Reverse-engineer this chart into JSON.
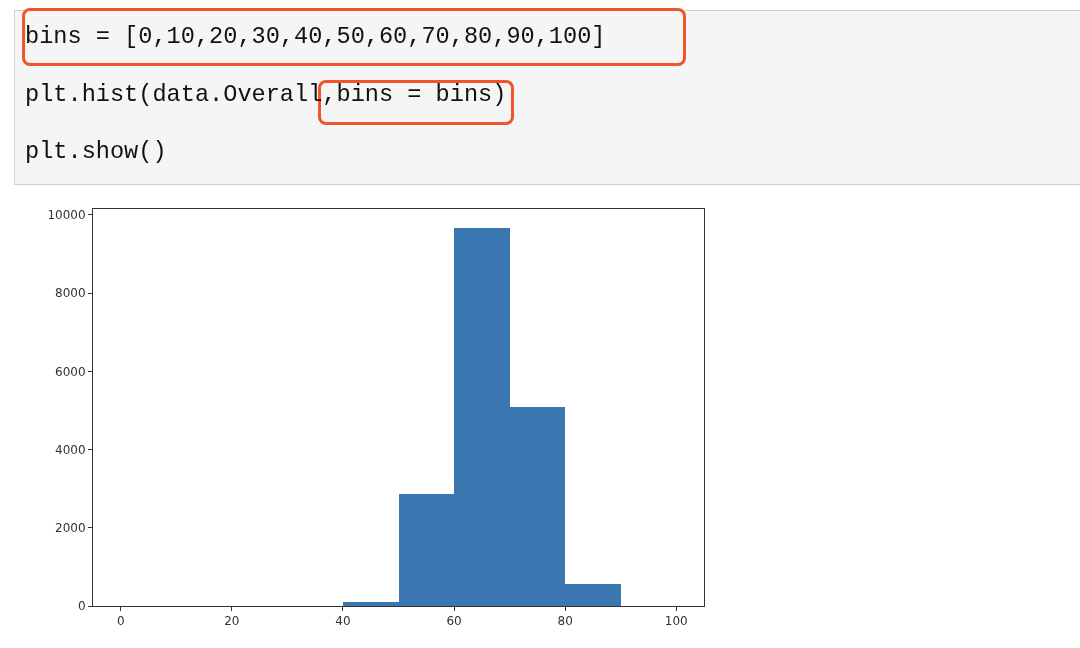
{
  "chart_data": {
    "type": "histogram",
    "annotations": [
      "bins = [0,10,20,30,40,50,60,70,80,90,100]",
      "plt.hist(data.Overall,bins = bins)",
      "plt.show()"
    ],
    "bins": [
      0,
      10,
      20,
      30,
      40,
      50,
      60,
      70,
      80,
      90,
      100
    ],
    "values": [
      0,
      0,
      0,
      0,
      90,
      2860,
      9670,
      5100,
      570,
      0
    ],
    "color": "#3a76af",
    "xlim": [
      -5,
      105
    ],
    "xticks": [
      0,
      20,
      40,
      60,
      80,
      100
    ],
    "ylim": [
      0,
      10150
    ],
    "yticks": [
      0,
      2000,
      4000,
      6000,
      8000,
      10000
    ]
  }
}
